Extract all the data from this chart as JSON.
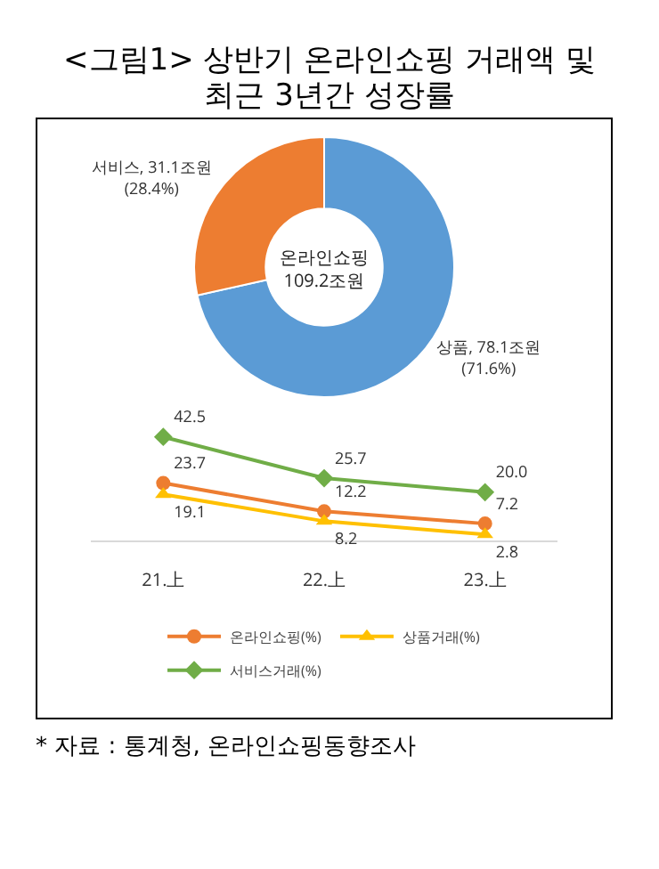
{
  "chart_data": [
    {
      "type": "donut",
      "title": "<그림1> 상반기 온라인쇼핑 거래액 및\n최근 3년간 성장률",
      "categories": [
        "상품",
        "서비스"
      ],
      "values": [
        78.1,
        31.1
      ],
      "colors": [
        "#5b9bd5",
        "#ed7d31"
      ],
      "value_labels": [
        "78.1조원\n(71.6%)",
        "31.1조원\n(28.4%)"
      ],
      "annotations": [
        "온라인쇼핑\n109.2조원"
      ]
    },
    {
      "type": "line",
      "categories": [
        "21.上",
        "22.上",
        "23.上"
      ],
      "tick_labels": "x",
      "legend": "bottom",
      "grid": false,
      "series": [
        {
          "name": "온라인쇼핑(%)",
          "color": "#ed7d31",
          "marker": "circle",
          "values": [
            23.7,
            12.2,
            7.2
          ],
          "value_labels": [
            "23.7",
            "12.2",
            "7.2"
          ]
        },
        {
          "name": "상품거래(%)",
          "color": "#ffc000",
          "marker": "triangle",
          "values": [
            19.1,
            8.2,
            2.8
          ],
          "value_labels": [
            "19.1",
            "8.2",
            "2.8"
          ]
        },
        {
          "name": "서비스거래(%)",
          "color": "#70ad47",
          "marker": "diamond",
          "values": [
            42.5,
            25.7,
            20.0
          ],
          "value_labels": [
            "42.5",
            "25.7",
            "20.0"
          ]
        }
      ],
      "annotations": [
        "* 자료 : 통계청, 온라인쇼핑동향조사"
      ]
    }
  ]
}
